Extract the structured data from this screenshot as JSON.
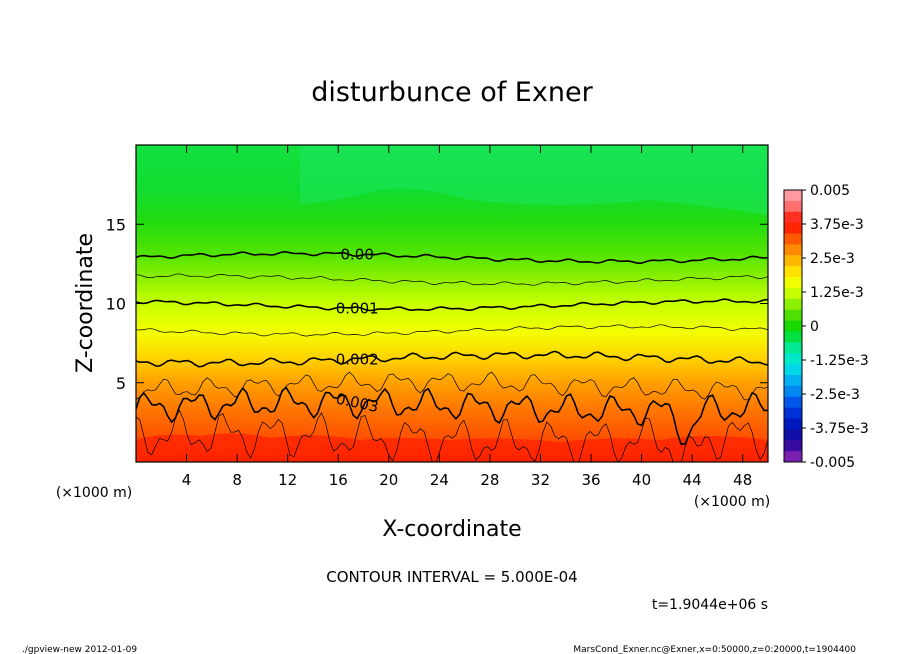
{
  "chart_data": {
    "type": "contour",
    "title": "disturbunce of Exner",
    "xlabel": "X-coordinate",
    "ylabel": "Z-coordinate",
    "x_units_note": "(×1000 m)",
    "y_units_note": "(×1000 m)",
    "xlim": [
      0,
      50
    ],
    "ylim": [
      0,
      20
    ],
    "x_ticks": [
      4,
      8,
      12,
      16,
      20,
      24,
      28,
      32,
      36,
      40,
      44,
      48
    ],
    "y_ticks": [
      5,
      10,
      15
    ],
    "contour_interval_text": "CONTOUR INTERVAL = 5.000E-04",
    "time_text": "t=1.9044e+06 s",
    "contours": [
      {
        "level": 0.0,
        "label": "0.00",
        "z_base": 12.9,
        "major": true
      },
      {
        "level": 0.0005,
        "label": "",
        "z_base": 11.5,
        "major": false
      },
      {
        "level": 0.001,
        "label": "0.001",
        "z_base": 9.9,
        "major": true
      },
      {
        "level": 0.0015,
        "label": "",
        "z_base": 8.3,
        "major": false
      },
      {
        "level": 0.002,
        "label": "0.002",
        "z_base": 6.5,
        "major": true
      },
      {
        "level": 0.0025,
        "label": "",
        "z_base": 4.8,
        "major": false
      },
      {
        "level": 0.003,
        "label": "0.003",
        "z_base": 3.5,
        "major": true
      },
      {
        "level": 0.0035,
        "label": "",
        "z_base": 1.5,
        "major": false
      }
    ],
    "colorbar": {
      "labels": [
        "0.005",
        "3.75e-3",
        "2.5e-3",
        "1.25e-3",
        "0",
        "-1.25e-3",
        "-2.5e-3",
        "-3.75e-3",
        "-0.005"
      ],
      "colors": [
        "#ff9aa0",
        "#ff6f6f",
        "#ff3020",
        "#ff2500",
        "#ff5a00",
        "#ff8a00",
        "#ffb800",
        "#ffe000",
        "#f0ff00",
        "#c8ff00",
        "#8cf000",
        "#50e000",
        "#18d800",
        "#00e040",
        "#00e890",
        "#00e8c8",
        "#00d8e8",
        "#00b0f0",
        "#0088f0",
        "#0058e8",
        "#0030d8",
        "#0018c0",
        "#1010a8",
        "#3a0aa0",
        "#7a20b0"
      ]
    }
  },
  "footer": {
    "left": "./gpview-new 2012-01-09",
    "right": "MarsCond_Exner.nc@Exner,x=0:50000,z=0:20000,t=1904400"
  }
}
